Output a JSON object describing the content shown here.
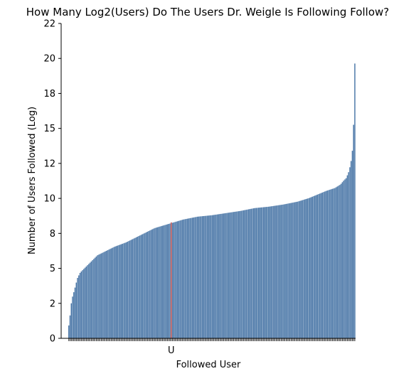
{
  "chart_data": {
    "type": "bar",
    "title": "How Many Log2(Users) Do The Users Dr. Weigle Is Following Follow?",
    "xlabel": "Followed User",
    "ylabel": "Number of Users Followed (Log)",
    "ylim": [
      0,
      22
    ],
    "yticks": [
      "0",
      "2",
      "5",
      "8",
      "10",
      "12",
      "15",
      "18",
      "20",
      "22"
    ],
    "bar_color": "#4c78a8",
    "highlight_color": "#c0504d",
    "highlight_label": "U",
    "highlight_value": 8.1,
    "highlight_rank": 0.357,
    "bar_count": 230,
    "value_profile": {
      "rank": [
        0.0,
        0.005,
        0.01,
        0.02,
        0.03,
        0.04,
        0.06,
        0.08,
        0.1,
        0.13,
        0.16,
        0.2,
        0.25,
        0.3,
        0.35,
        0.4,
        0.45,
        0.5,
        0.55,
        0.6,
        0.65,
        0.7,
        0.75,
        0.8,
        0.84,
        0.87,
        0.9,
        0.93,
        0.95,
        0.96,
        0.97,
        0.98,
        0.99,
        0.995,
        1.0
      ],
      "value": [
        0.9,
        1.7,
        2.7,
        3.4,
        4.2,
        4.6,
        5.0,
        5.4,
        5.8,
        6.1,
        6.4,
        6.7,
        7.2,
        7.7,
        8.0,
        8.3,
        8.5,
        8.6,
        8.75,
        8.9,
        9.1,
        9.2,
        9.35,
        9.55,
        9.8,
        10.05,
        10.3,
        10.5,
        10.75,
        11.0,
        11.2,
        11.7,
        12.7,
        14.3,
        19.2
      ]
    },
    "grid": false,
    "legend": "none"
  }
}
